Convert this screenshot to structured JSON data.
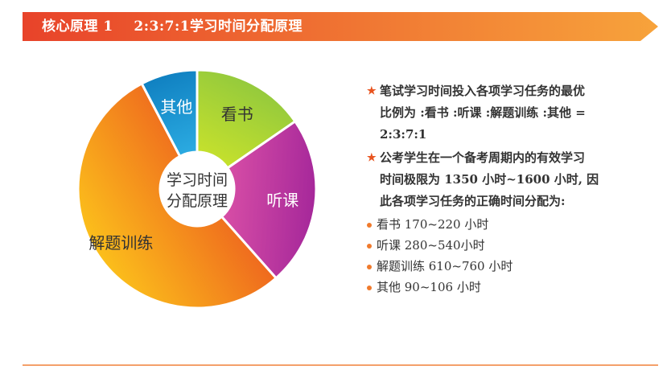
{
  "header": {
    "title": "核心原理 1    2:3:7:1学习时间分配原理"
  },
  "colors": {
    "banner_start": "#e8432a",
    "banner_end": "#f7a33b",
    "bullet_star": "#e8541f",
    "bullet_dot": "#f07a2c"
  },
  "chart_data": {
    "type": "pie",
    "style": "donut",
    "center_label": [
      "学习时间",
      "分配原理"
    ],
    "slices": [
      {
        "label": "看书",
        "value": 2,
        "color_start": "#c4e02d",
        "color_end": "#8cc63f",
        "text_color": "#333333"
      },
      {
        "label": "听课",
        "value": 3,
        "color_start": "#d94fa6",
        "color_end": "#a5279a",
        "text_color": "#ffffff"
      },
      {
        "label": "解题训练",
        "value": 7,
        "color_start": "#e9431f",
        "color_end": "#fcc21b",
        "text_color": "#333333"
      },
      {
        "label": "其他",
        "value": 1,
        "color_start": "#2aa9e0",
        "color_end": "#0f7fc0",
        "text_color": "#ffffff"
      }
    ]
  },
  "content": {
    "points": [
      {
        "lines": [
          "笔试学习时间投入各项学习任务的最优",
          "比例为 :看书 :听课 :解题训练 :其他 =",
          "2:3:7:1"
        ]
      },
      {
        "lines": [
          "公考学生在一个备考周期内的有效学习",
          "时间极限为 1350 小时~1600 小时, 因",
          "此各项学习任务的正确时间分配为:"
        ]
      }
    ],
    "allocations": [
      "看书 170~220 小时",
      "听课 280~540小时",
      "解题训练 610~760 小时",
      "其他 90~106 小时"
    ]
  }
}
